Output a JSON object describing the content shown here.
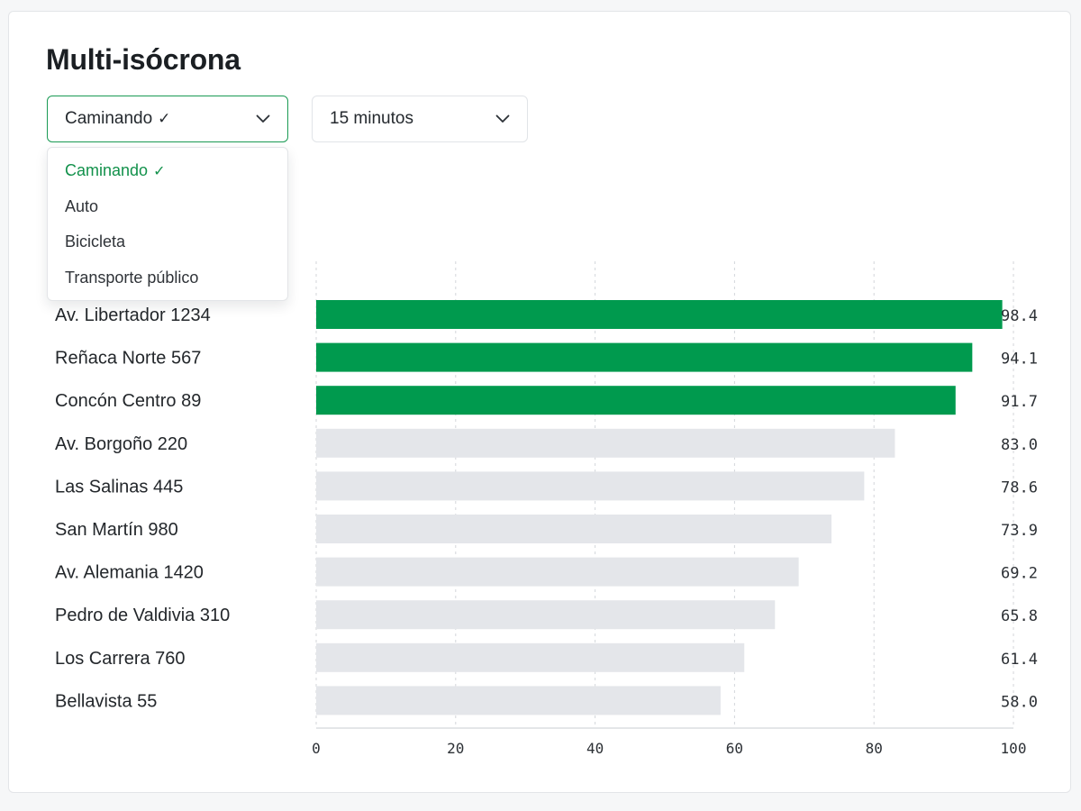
{
  "header": {
    "title": "Multi-isócrona"
  },
  "mode_select": {
    "value": "Caminando",
    "check": "✓",
    "open": true,
    "options": [
      "Caminando",
      "Auto",
      "Bicicleta",
      "Transporte público"
    ],
    "selected_index": 0
  },
  "time_select": {
    "value": "15 minutos"
  },
  "colors": {
    "highlight_bar": "#009a4e",
    "default_bar": "#e4e6ea",
    "accent": "#1a9a54",
    "grid": "#d3d6da"
  },
  "icons": {
    "dropdown": "chevron-down-icon",
    "selected": "check-icon"
  },
  "chart_data": {
    "type": "bar",
    "orientation": "horizontal",
    "categories": [
      "Av. Libertador 1234",
      "Reñaca Norte 567",
      "Concón Centro 89",
      "Av. Borgoño 220",
      "Las Salinas 445",
      "San Martín 980",
      "Av. Alemania 1420",
      "Pedro de Valdivia 310",
      "Los Carrera 760",
      "Bellavista 55"
    ],
    "values": [
      98.4,
      94.1,
      91.7,
      83.0,
      78.6,
      73.9,
      69.2,
      65.8,
      61.4,
      58.0
    ],
    "value_labels": [
      "98.4",
      "94.1",
      "91.7",
      "83.0",
      "78.6",
      "73.9",
      "69.2",
      "65.8",
      "61.4",
      "58.0"
    ],
    "highlighted": [
      true,
      true,
      true,
      false,
      false,
      false,
      false,
      false,
      false,
      false
    ],
    "xlim": [
      0,
      100
    ],
    "xticks": [
      0,
      20,
      40,
      60,
      80,
      100
    ],
    "xtick_labels": [
      "0",
      "20",
      "40",
      "60",
      "80",
      "100"
    ],
    "grid": "vertical dashed",
    "title": "",
    "xlabel": "",
    "ylabel": ""
  }
}
